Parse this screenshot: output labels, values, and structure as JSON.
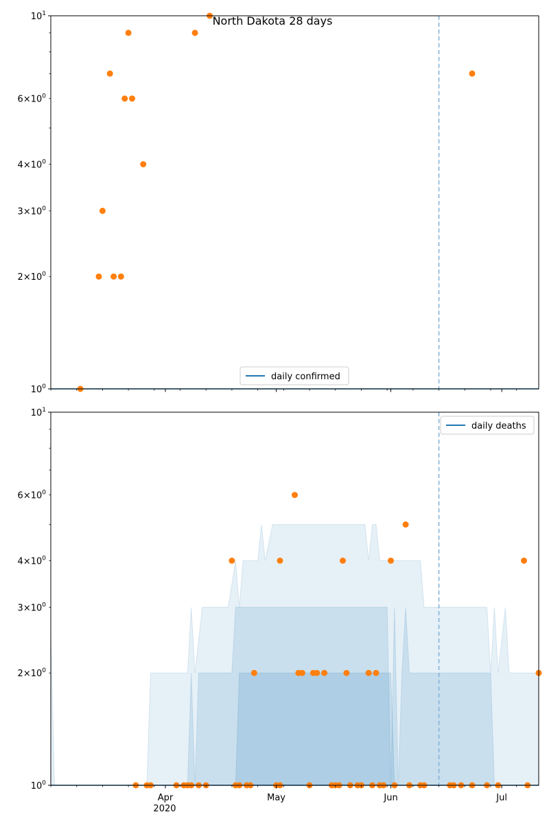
{
  "figure": {
    "title": "North Dakota 28 days"
  },
  "chart_data": [
    {
      "type": "scatter",
      "title": "North Dakota 28 days",
      "yscale": "log",
      "ylim": [
        1,
        10
      ],
      "xlim": [
        "2020-03-01",
        "2020-07-11"
      ],
      "y_major_ticks": [
        {
          "value": 1,
          "label": "10^0"
        },
        {
          "value": 10,
          "label": "10^1"
        }
      ],
      "y_minor_labeled": [
        {
          "value": 2,
          "label": "2×10^0"
        },
        {
          "value": 3,
          "label": "3×10^0"
        },
        {
          "value": 4,
          "label": "4×10^0"
        },
        {
          "value": 6,
          "label": "6×10^0"
        }
      ],
      "x_ticks": [
        {
          "date": "2020-04-01",
          "label": "Apr",
          "sublabel": "2020"
        },
        {
          "date": "2020-05-01",
          "label": "May"
        },
        {
          "date": "2020-06-01",
          "label": "Jun"
        },
        {
          "date": "2020-07-01",
          "label": "Jul"
        }
      ],
      "legend": {
        "label": "daily confirmed",
        "color": "#1f77b4",
        "position": "lower center"
      },
      "vline_date": "2020-06-14",
      "line": {
        "name": "daily confirmed",
        "y": 1,
        "color": "#1f77b4"
      },
      "points_color": "#ff7f0e",
      "points": [
        {
          "x": "2020-03-09",
          "y": 1
        },
        {
          "x": "2020-03-14",
          "y": 2
        },
        {
          "x": "2020-03-15",
          "y": 3
        },
        {
          "x": "2020-03-17",
          "y": 7
        },
        {
          "x": "2020-03-18",
          "y": 2
        },
        {
          "x": "2020-03-20",
          "y": 2
        },
        {
          "x": "2020-03-21",
          "y": 6
        },
        {
          "x": "2020-03-22",
          "y": 9
        },
        {
          "x": "2020-03-23",
          "y": 6
        },
        {
          "x": "2020-03-26",
          "y": 4
        },
        {
          "x": "2020-04-09",
          "y": 9
        },
        {
          "x": "2020-04-13",
          "y": 10
        },
        {
          "x": "2020-06-23",
          "y": 7
        }
      ]
    },
    {
      "type": "scatter",
      "yscale": "log",
      "ylim": [
        1,
        10
      ],
      "xlim": [
        "2020-03-01",
        "2020-07-11"
      ],
      "y_major_ticks": [
        {
          "value": 1,
          "label": "10^0"
        },
        {
          "value": 10,
          "label": "10^1"
        }
      ],
      "y_minor_labeled": [
        {
          "value": 2,
          "label": "2×10^0"
        },
        {
          "value": 3,
          "label": "3×10^0"
        },
        {
          "value": 4,
          "label": "4×10^0"
        },
        {
          "value": 6,
          "label": "6×10^0"
        }
      ],
      "x_ticks": [
        {
          "date": "2020-04-01",
          "label": "Apr",
          "sublabel": "2020"
        },
        {
          "date": "2020-05-01",
          "label": "May"
        },
        {
          "date": "2020-06-01",
          "label": "Jun"
        },
        {
          "date": "2020-07-01",
          "label": "Jul"
        }
      ],
      "legend": {
        "label": "daily deaths",
        "color": "#1f77b4",
        "position": "upper right"
      },
      "vline_date": "2020-06-14",
      "line": {
        "name": "daily deaths",
        "y": 1,
        "color": "#1f77b4"
      },
      "bands": [
        {
          "color": "#1f77b4",
          "opacity": 0.11,
          "upper": [
            [
              "2020-03-01",
              2.6
            ],
            [
              "2020-03-02",
              1
            ],
            [
              "2020-03-27",
              1
            ],
            [
              "2020-03-28",
              2
            ],
            [
              "2020-04-07",
              2
            ],
            [
              "2020-04-08",
              3
            ],
            [
              "2020-04-09",
              2
            ],
            [
              "2020-04-11",
              3
            ],
            [
              "2020-04-18",
              3
            ],
            [
              "2020-04-20",
              4
            ],
            [
              "2020-04-21",
              3
            ],
            [
              "2020-04-22",
              4
            ],
            [
              "2020-04-26",
              4
            ],
            [
              "2020-04-27",
              5
            ],
            [
              "2020-04-28",
              4
            ],
            [
              "2020-04-30",
              5
            ],
            [
              "2020-05-25",
              5
            ],
            [
              "2020-05-26",
              4
            ],
            [
              "2020-05-27",
              5
            ],
            [
              "2020-05-28",
              5
            ],
            [
              "2020-05-29",
              4
            ],
            [
              "2020-06-09",
              4
            ],
            [
              "2020-06-10",
              3
            ],
            [
              "2020-06-24",
              3
            ],
            [
              "2020-06-27",
              3
            ],
            [
              "2020-06-28",
              2
            ],
            [
              "2020-06-29",
              3
            ],
            [
              "2020-06-30",
              2
            ],
            [
              "2020-07-02",
              3
            ],
            [
              "2020-07-03",
              2
            ],
            [
              "2020-07-07",
              2
            ],
            [
              "2020-07-11",
              2
            ]
          ]
        },
        {
          "color": "#1f77b4",
          "opacity": 0.14,
          "upper": [
            [
              "2020-04-07",
              1
            ],
            [
              "2020-04-08",
              2
            ],
            [
              "2020-04-09",
              1
            ],
            [
              "2020-04-10",
              2
            ],
            [
              "2020-04-19",
              2
            ],
            [
              "2020-04-20",
              3
            ],
            [
              "2020-05-31",
              3
            ],
            [
              "2020-06-01",
              1
            ],
            [
              "2020-06-02",
              3
            ],
            [
              "2020-06-03",
              1
            ],
            [
              "2020-06-04",
              2
            ],
            [
              "2020-06-05",
              3
            ],
            [
              "2020-06-06",
              2
            ],
            [
              "2020-06-15",
              2
            ],
            [
              "2020-06-28",
              2
            ],
            [
              "2020-06-29",
              1
            ],
            [
              "2020-06-30",
              1
            ]
          ]
        },
        {
          "color": "#1f77b4",
          "opacity": 0.16,
          "upper": [
            [
              "2020-04-20",
              1
            ],
            [
              "2020-04-21",
              2
            ],
            [
              "2020-06-01",
              2
            ],
            [
              "2020-06-02",
              1
            ]
          ]
        }
      ],
      "points_color": "#ff7f0e",
      "points": [
        {
          "x": "2020-03-24",
          "y": 1
        },
        {
          "x": "2020-03-27",
          "y": 1
        },
        {
          "x": "2020-03-28",
          "y": 1
        },
        {
          "x": "2020-04-04",
          "y": 1
        },
        {
          "x": "2020-04-06",
          "y": 1
        },
        {
          "x": "2020-04-07",
          "y": 1
        },
        {
          "x": "2020-04-08",
          "y": 1
        },
        {
          "x": "2020-04-10",
          "y": 1
        },
        {
          "x": "2020-04-12",
          "y": 1
        },
        {
          "x": "2020-04-19",
          "y": 4
        },
        {
          "x": "2020-04-20",
          "y": 1
        },
        {
          "x": "2020-04-21",
          "y": 1
        },
        {
          "x": "2020-04-23",
          "y": 1
        },
        {
          "x": "2020-04-24",
          "y": 1
        },
        {
          "x": "2020-04-25",
          "y": 2
        },
        {
          "x": "2020-05-01",
          "y": 1
        },
        {
          "x": "2020-05-02",
          "y": 1
        },
        {
          "x": "2020-05-02",
          "y": 4
        },
        {
          "x": "2020-05-06",
          "y": 6
        },
        {
          "x": "2020-05-07",
          "y": 2
        },
        {
          "x": "2020-05-08",
          "y": 2
        },
        {
          "x": "2020-05-10",
          "y": 1
        },
        {
          "x": "2020-05-11",
          "y": 2
        },
        {
          "x": "2020-05-12",
          "y": 2
        },
        {
          "x": "2020-05-14",
          "y": 2
        },
        {
          "x": "2020-05-16",
          "y": 1
        },
        {
          "x": "2020-05-17",
          "y": 1
        },
        {
          "x": "2020-05-18",
          "y": 1
        },
        {
          "x": "2020-05-19",
          "y": 4
        },
        {
          "x": "2020-05-20",
          "y": 2
        },
        {
          "x": "2020-05-21",
          "y": 1
        },
        {
          "x": "2020-05-23",
          "y": 1
        },
        {
          "x": "2020-05-24",
          "y": 1
        },
        {
          "x": "2020-05-26",
          "y": 2
        },
        {
          "x": "2020-05-27",
          "y": 1
        },
        {
          "x": "2020-05-28",
          "y": 2
        },
        {
          "x": "2020-05-29",
          "y": 1
        },
        {
          "x": "2020-05-30",
          "y": 1
        },
        {
          "x": "2020-06-01",
          "y": 4
        },
        {
          "x": "2020-06-02",
          "y": 1
        },
        {
          "x": "2020-06-05",
          "y": 5
        },
        {
          "x": "2020-06-06",
          "y": 1
        },
        {
          "x": "2020-06-09",
          "y": 1
        },
        {
          "x": "2020-06-10",
          "y": 1
        },
        {
          "x": "2020-06-17",
          "y": 1
        },
        {
          "x": "2020-06-18",
          "y": 1
        },
        {
          "x": "2020-06-20",
          "y": 1
        },
        {
          "x": "2020-06-23",
          "y": 1
        },
        {
          "x": "2020-06-27",
          "y": 1
        },
        {
          "x": "2020-06-30",
          "y": 1
        },
        {
          "x": "2020-07-07",
          "y": 4
        },
        {
          "x": "2020-07-08",
          "y": 1
        },
        {
          "x": "2020-07-11",
          "y": 2
        }
      ]
    }
  ]
}
